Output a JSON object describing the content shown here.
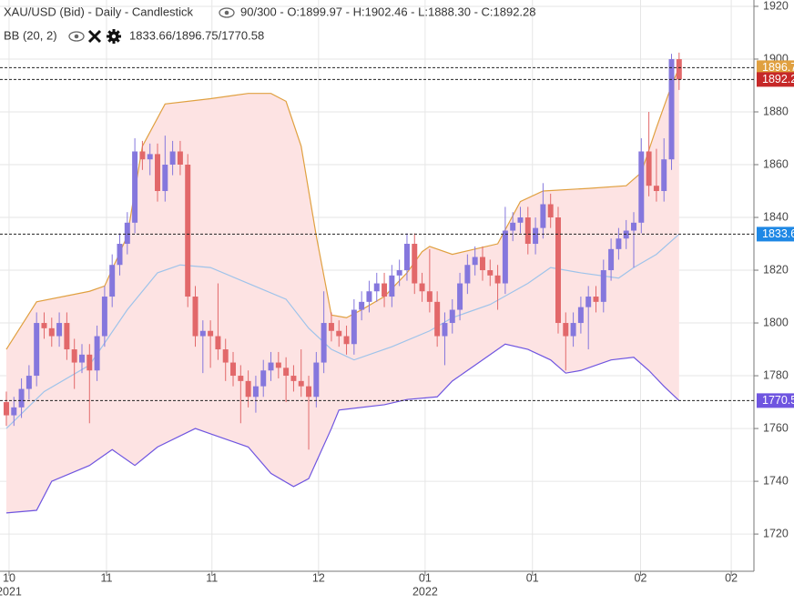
{
  "chart_data": {
    "type": "candlestick",
    "title": "XAU/USD (Bid) - Daily - Candlestick",
    "subtitle": "90/300 - O:1899.97 - H:1902.46 - L:1888.30 - C:1892.28",
    "up_color": "#8577dd",
    "down_color": "#e2686a",
    "open": [
      1770,
      1765,
      1768,
      1775,
      1780,
      1800,
      1798,
      1795,
      1800,
      1790,
      1785,
      1788,
      1782,
      1795,
      1810,
      1822,
      1830,
      1838,
      1865,
      1862,
      1864,
      1850,
      1860,
      1865,
      1860,
      1810,
      1795,
      1797,
      1795,
      1790,
      1785,
      1780,
      1778,
      1772,
      1776,
      1782,
      1785,
      1783,
      1780,
      1778,
      1776,
      1772,
      1785,
      1800,
      1797,
      1795,
      1792,
      1805,
      1808,
      1812,
      1815,
      1810,
      1818,
      1820,
      1830,
      1815,
      1812,
      1808,
      1795,
      1800,
      1805,
      1815,
      1822,
      1825,
      1820,
      1818,
      1815,
      1835,
      1838,
      1840,
      1830,
      1836,
      1845,
      1840,
      1800,
      1795,
      1800,
      1806,
      1810,
      1808,
      1820,
      1828,
      1832,
      1835,
      1838,
      1865,
      1852,
      1850,
      1862,
      1899.97
    ],
    "high": [
      1774,
      1772,
      1779,
      1784,
      1804,
      1804,
      1802,
      1804,
      1804,
      1794,
      1792,
      1792,
      1799,
      1814,
      1826,
      1834,
      1842,
      1870,
      1869,
      1868,
      1868,
      1871,
      1869,
      1869,
      1864,
      1814,
      1801,
      1801,
      1815,
      1794,
      1789,
      1784,
      1782,
      1780,
      1786,
      1789,
      1789,
      1787,
      1784,
      1790,
      1780,
      1789,
      1812,
      1804,
      1801,
      1799,
      1809,
      1812,
      1816,
      1819,
      1819,
      1822,
      1824,
      1834,
      1834,
      1819,
      1828,
      1812,
      1804,
      1809,
      1819,
      1826,
      1829,
      1829,
      1824,
      1822,
      1844,
      1842,
      1844,
      1844,
      1840,
      1853,
      1849,
      1844,
      1804,
      1804,
      1810,
      1814,
      1814,
      1824,
      1832,
      1836,
      1839,
      1842,
      1870,
      1880,
      1866,
      1870,
      1902,
      1902.46
    ],
    "low": [
      1761,
      1761,
      1764,
      1771,
      1776,
      1794,
      1791,
      1791,
      1786,
      1775,
      1781,
      1762,
      1778,
      1791,
      1806,
      1818,
      1826,
      1834,
      1858,
      1856,
      1846,
      1846,
      1856,
      1856,
      1806,
      1791,
      1781,
      1783,
      1786,
      1778,
      1776,
      1762,
      1768,
      1766,
      1772,
      1778,
      1779,
      1770,
      1774,
      1772,
      1752,
      1768,
      1781,
      1793,
      1791,
      1788,
      1788,
      1801,
      1804,
      1808,
      1806,
      1806,
      1814,
      1816,
      1811,
      1808,
      1804,
      1791,
      1784,
      1796,
      1801,
      1811,
      1818,
      1816,
      1814,
      1805,
      1811,
      1831,
      1834,
      1826,
      1826,
      1832,
      1836,
      1796,
      1782,
      1791,
      1796,
      1790,
      1804,
      1804,
      1816,
      1824,
      1828,
      1821,
      1834,
      1848,
      1846,
      1846,
      1858,
      1888.3
    ],
    "close": [
      1765,
      1768,
      1775,
      1780,
      1800,
      1798,
      1795,
      1800,
      1790,
      1785,
      1788,
      1782,
      1795,
      1810,
      1822,
      1830,
      1838,
      1865,
      1862,
      1864,
      1850,
      1860,
      1865,
      1860,
      1810,
      1795,
      1797,
      1795,
      1790,
      1785,
      1780,
      1778,
      1772,
      1776,
      1782,
      1785,
      1783,
      1780,
      1778,
      1776,
      1772,
      1785,
      1800,
      1797,
      1795,
      1792,
      1805,
      1808,
      1812,
      1815,
      1810,
      1818,
      1820,
      1830,
      1815,
      1812,
      1808,
      1795,
      1800,
      1805,
      1815,
      1822,
      1825,
      1820,
      1818,
      1815,
      1835,
      1838,
      1840,
      1830,
      1836,
      1845,
      1840,
      1800,
      1795,
      1800,
      1806,
      1810,
      1808,
      1820,
      1828,
      1832,
      1835,
      1838,
      1865,
      1852,
      1850,
      1862,
      1900,
      1892.28
    ],
    "indicator": {
      "label": "BB (20, 2)",
      "values_text": "1833.66/1896.75/1770.58",
      "fill_color": "#fde3e3",
      "upper": {
        "color": "#e0a040",
        "x": [
          0,
          4,
          11,
          13,
          16,
          18,
          21,
          27,
          32,
          35,
          37,
          39,
          41,
          43,
          45,
          47,
          50,
          53,
          55,
          56,
          59,
          62,
          65,
          68,
          71,
          77,
          82,
          84,
          86,
          88,
          89
        ],
        "values": [
          1790,
          1808,
          1812,
          1814,
          1833,
          1867,
          1883,
          1885,
          1887,
          1887,
          1884,
          1867,
          1833,
          1803,
          1802,
          1805,
          1810,
          1819,
          1827,
          1829,
          1826,
          1828,
          1830,
          1846,
          1850,
          1851,
          1852,
          1857,
          1874,
          1890,
          1896.75
        ]
      },
      "middle": {
        "color": "#9ec3ea",
        "x": [
          0,
          5,
          11,
          16,
          20,
          23,
          27,
          32,
          37,
          40,
          43,
          46,
          51,
          56,
          59,
          64,
          69,
          72,
          76,
          81,
          83,
          86,
          89
        ],
        "values": [
          1760,
          1774,
          1784,
          1805,
          1819,
          1822,
          1821,
          1815,
          1809,
          1798,
          1790,
          1786,
          1791,
          1797,
          1802,
          1807,
          1815,
          1821,
          1819,
          1817,
          1821,
          1826,
          1833.66
        ]
      },
      "lower": {
        "color": "#6f55e0",
        "x": [
          0,
          4,
          6,
          11,
          14,
          17,
          20,
          25,
          28,
          32,
          35,
          38,
          40,
          43,
          44,
          50,
          53,
          57,
          59,
          62,
          66,
          69,
          72,
          74,
          76,
          80,
          83,
          85,
          87,
          89
        ],
        "values": [
          1728,
          1729,
          1740,
          1746,
          1752,
          1746,
          1753,
          1760,
          1757,
          1753,
          1743,
          1738,
          1741,
          1760,
          1767,
          1769,
          1771,
          1772,
          1778,
          1784,
          1792,
          1790,
          1786,
          1781,
          1782,
          1786,
          1787,
          1782,
          1776,
          1770.58
        ]
      }
    },
    "close_color": "#c62828",
    "middle_level_color": "#1e88e5",
    "ylim": [
      1705.9,
      1922.4
    ],
    "yticks": [
      1720,
      1740,
      1760,
      1780,
      1800,
      1820,
      1840,
      1860,
      1880,
      1900,
      1920
    ],
    "xlim": [
      -0.84,
      98.9
    ],
    "xticks": [
      {
        "value": 0.36,
        "label": "10"
      },
      {
        "value": 13.25,
        "label": "11"
      },
      {
        "value": 27.2,
        "label": "11"
      },
      {
        "value": 41.3,
        "label": "12"
      },
      {
        "value": 55.4,
        "label": "01"
      },
      {
        "value": 69.6,
        "label": "01"
      },
      {
        "value": 83.9,
        "label": "02"
      },
      {
        "value": 95.9,
        "label": "02"
      }
    ],
    "year_labels": [
      {
        "value": 0.36,
        "label": "2021"
      },
      {
        "value": 55.4,
        "label": "2022"
      }
    ],
    "grid": true
  }
}
